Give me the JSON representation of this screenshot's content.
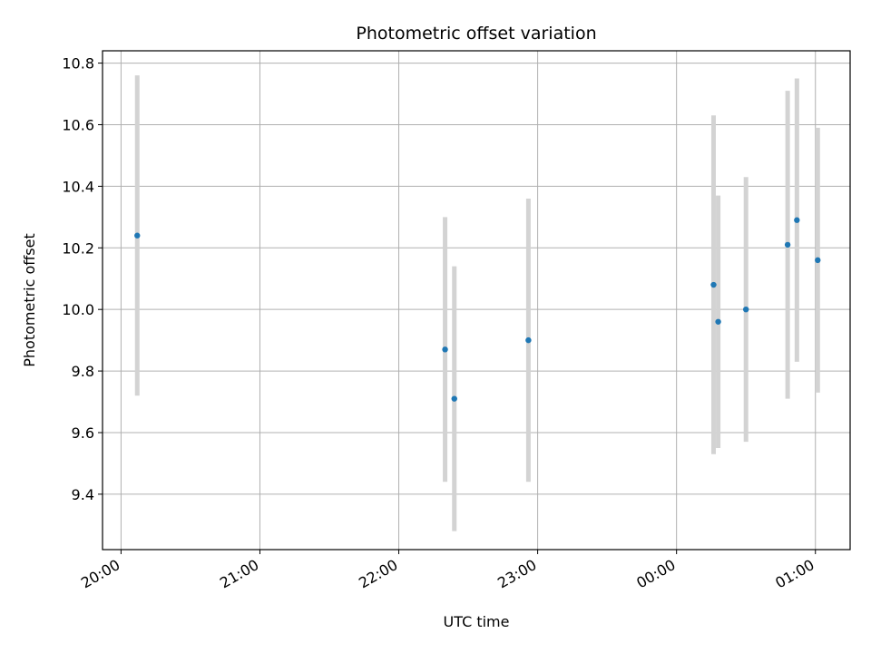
{
  "chart_data": {
    "type": "scatter",
    "title": "Photometric offset variation",
    "xlabel": "UTC time",
    "ylabel": "Photometric offset",
    "x_ticks": [
      "20:00",
      "21:00",
      "22:00",
      "23:00",
      "00:00",
      "01:00"
    ],
    "x_tick_values": [
      "20:00",
      "21:00",
      "22:00",
      "23:00",
      "00:00",
      "01:00"
    ],
    "xlim": [
      "19:52",
      "01:15"
    ],
    "y_ticks": [
      "9.4",
      "9.6",
      "9.8",
      "10.0",
      "10.2",
      "10.4",
      "10.6",
      "10.8"
    ],
    "ylim": [
      9.22,
      10.84
    ],
    "grid": true,
    "series": [
      {
        "x": [
          "20:07",
          "22:20",
          "22:24",
          "22:56",
          "00:16",
          "00:18",
          "00:30",
          "00:48",
          "00:52",
          "01:01"
        ],
        "y": [
          10.24,
          9.87,
          9.71,
          9.9,
          10.08,
          9.96,
          10.0,
          10.21,
          10.29,
          10.16
        ],
        "yerr": [
          0.52,
          0.43,
          0.43,
          0.46,
          0.55,
          0.41,
          0.43,
          0.5,
          0.46,
          0.43
        ],
        "color": "#1f77b4",
        "errcolor": "#d3d3d3"
      }
    ]
  }
}
